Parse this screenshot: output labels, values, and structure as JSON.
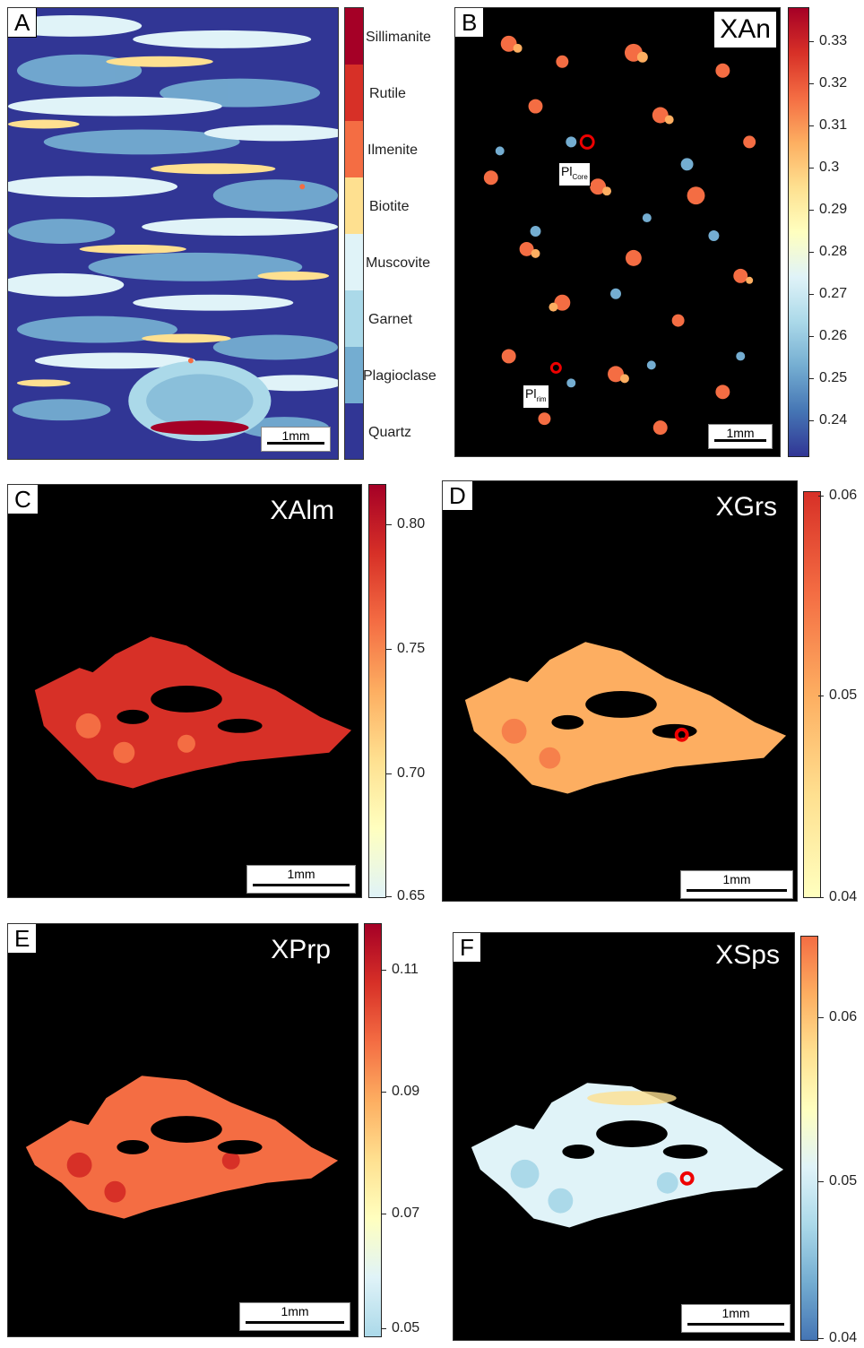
{
  "panels": {
    "a": {
      "label": "A",
      "scale": "1mm"
    },
    "b": {
      "label": "B",
      "title": "XAn",
      "scale": "1mm",
      "annotations": {
        "core_main": "Pl",
        "core_sub": "Core",
        "rim_main": "Pl",
        "rim_sub": "rim"
      }
    },
    "c": {
      "label": "C",
      "title": "XAlm",
      "scale": "1mm"
    },
    "d": {
      "label": "D",
      "title": "XGrs",
      "scale": "1mm"
    },
    "e": {
      "label": "E",
      "title": "XPrp",
      "scale": "1mm"
    },
    "f": {
      "label": "F",
      "title": "XSps",
      "scale": "1mm"
    }
  },
  "legend_a": {
    "items": [
      "Sillimanite",
      "Rutile",
      "Ilmenite",
      "Biotite",
      "Muscovite",
      "Garnet",
      "Plagioclase",
      "Quartz"
    ],
    "colors": [
      "#a50026",
      "#d73027",
      "#f46d43",
      "#fee090",
      "#e0f3f8",
      "#abd9e9",
      "#74add1",
      "#313695"
    ]
  },
  "colorbars": {
    "b": [
      "0.33",
      "0.32",
      "0.31",
      "0.3",
      "0.29",
      "0.28",
      "0.27",
      "0.26",
      "0.25",
      "0.24"
    ],
    "c": [
      "0.80",
      "0.75",
      "0.70",
      "0.65"
    ],
    "d": [
      "0.06",
      "0.05",
      "0.04"
    ],
    "e": [
      "0.11",
      "0.09",
      "0.07",
      "0.05"
    ],
    "f": [
      "0.06",
      "0.05",
      "0.04"
    ]
  },
  "colors": {
    "map_background": "#000000",
    "rdylbu": [
      "#a50026",
      "#d73027",
      "#f46d43",
      "#fdae61",
      "#fee090",
      "#ffffbf",
      "#e0f3f8",
      "#abd9e9",
      "#74add1",
      "#4575b4",
      "#313695"
    ]
  }
}
